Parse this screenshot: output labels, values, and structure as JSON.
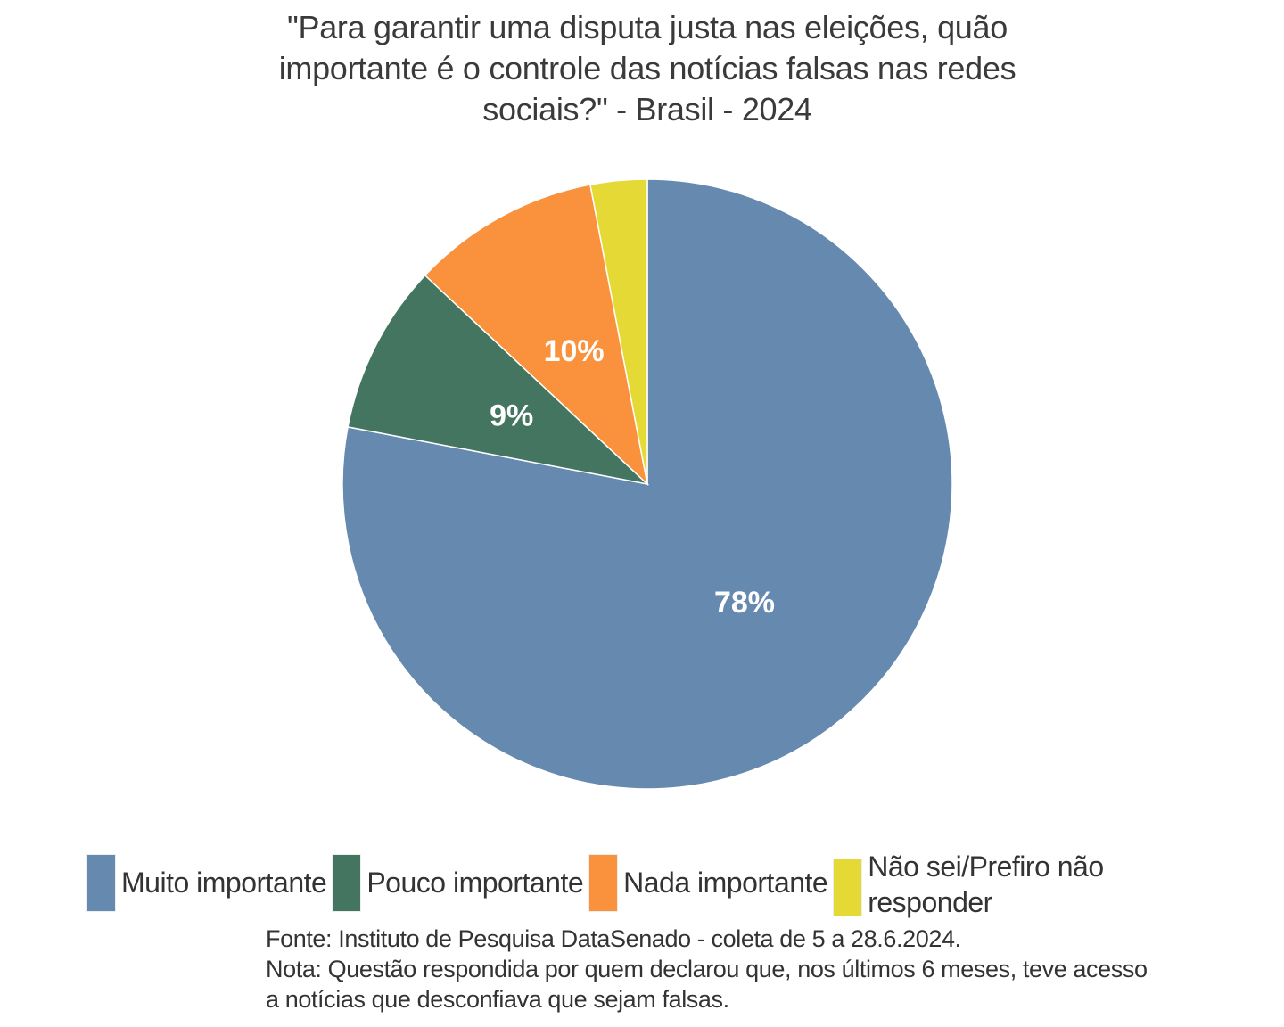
{
  "chart_data": {
    "type": "pie",
    "title_lines": [
      "\"Para garantir uma disputa justa nas eleições, quão",
      "importante é o controle das notícias falsas nas redes",
      "sociais?\" - Brasil - 2024"
    ],
    "categories": [
      "Muito importante",
      "Pouco importante",
      "Nada importante",
      "Não sei/Prefiro não responder"
    ],
    "values": [
      78,
      9,
      10,
      3
    ],
    "data_labels": [
      "78%",
      "9%",
      "10%",
      null
    ],
    "colors": [
      "#6689b0",
      "#447561",
      "#f9913d",
      "#e5d935"
    ],
    "start": "top",
    "direction": "clockwise",
    "legend_position": "bottom"
  },
  "notes": [
    "Fonte: Instituto de Pesquisa DataSenado - coleta de 5 a 28.6.2024.",
    "Nota: Questão respondida por quem declarou que, nos últimos 6 meses, teve acesso",
    "a notícias que desconfiava que sejam falsas."
  ]
}
